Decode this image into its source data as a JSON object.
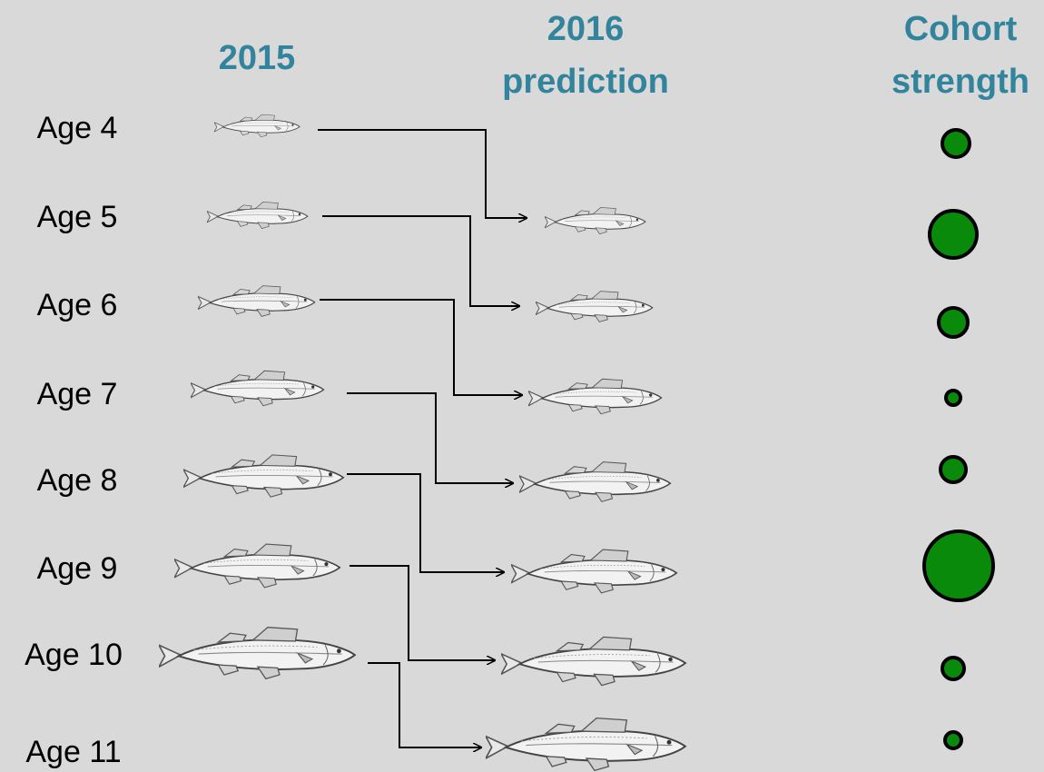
{
  "columns": [
    {
      "lines": [
        "2015"
      ]
    },
    {
      "lines": [
        "2016",
        "prediction"
      ]
    },
    {
      "lines": [
        "Cohort",
        "strength"
      ]
    }
  ],
  "ages": [
    "Age 4",
    "Age 5",
    "Age 6",
    "Age 7",
    "Age 8",
    "Age 9",
    "Age 10",
    "Age 11"
  ]
}
